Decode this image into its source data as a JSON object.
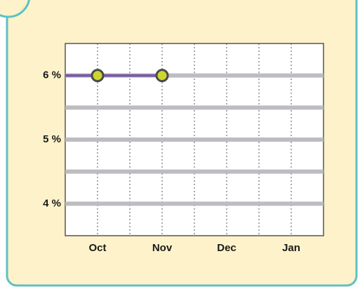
{
  "chart_data": {
    "type": "line",
    "categories": [
      "Oct",
      "Nov",
      "Dec",
      "Jan"
    ],
    "series": [
      {
        "color": "#7b5aa6",
        "values": [
          6,
          6,
          null,
          null
        ]
      }
    ],
    "ylim": [
      3.5,
      6.5
    ],
    "yticks": [
      {
        "value": 4,
        "label": "4 %"
      },
      {
        "value": 5,
        "label": "5 %"
      },
      {
        "value": 6,
        "label": "6 %"
      }
    ],
    "minor_yticks": [
      4.5,
      5.5
    ],
    "grid": true
  }
}
